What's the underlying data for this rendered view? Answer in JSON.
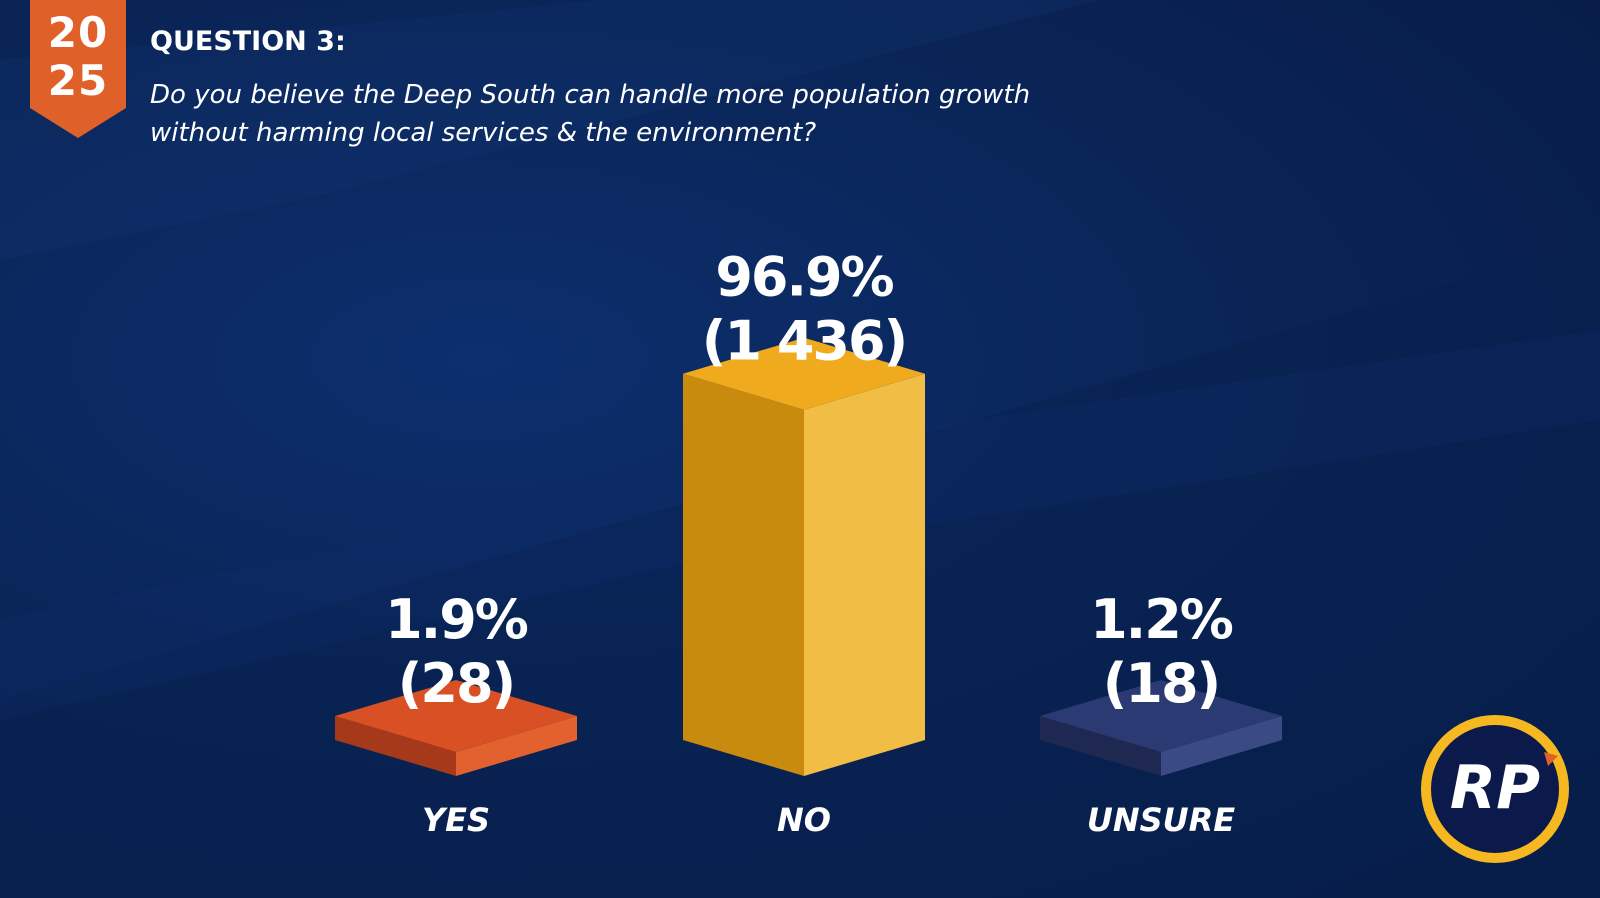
{
  "badge": {
    "line1": "20",
    "line2": "25",
    "color": "#e0602a"
  },
  "question": {
    "label": "QUESTION 3:",
    "text": "Do you believe the Deep South can handle more population growth without harming local services & the environment?"
  },
  "logo": {
    "text": "RP",
    "ring_color": "#f5b820",
    "bg_color": "#0b1a4a"
  },
  "chart_data": {
    "type": "bar",
    "categories": [
      "YES",
      "NO",
      "UNSURE"
    ],
    "values": [
      1.9,
      96.9,
      1.2
    ],
    "counts": [
      "(28)",
      "(1 436)",
      "(18)"
    ],
    "value_labels": [
      "1.9%",
      "96.9%",
      "1.2%"
    ],
    "colors": [
      {
        "top": "#d95024",
        "front": "#a6391a",
        "side": "#e2612e"
      },
      {
        "top": "#efaa1e",
        "front": "#c98b0e",
        "side": "#f2bd45"
      },
      {
        "top": "#2b3a72",
        "front": "#1e2850",
        "side": "#3a4a85"
      }
    ],
    "ylim": [
      0,
      100
    ],
    "grid": false,
    "legend": "none"
  }
}
